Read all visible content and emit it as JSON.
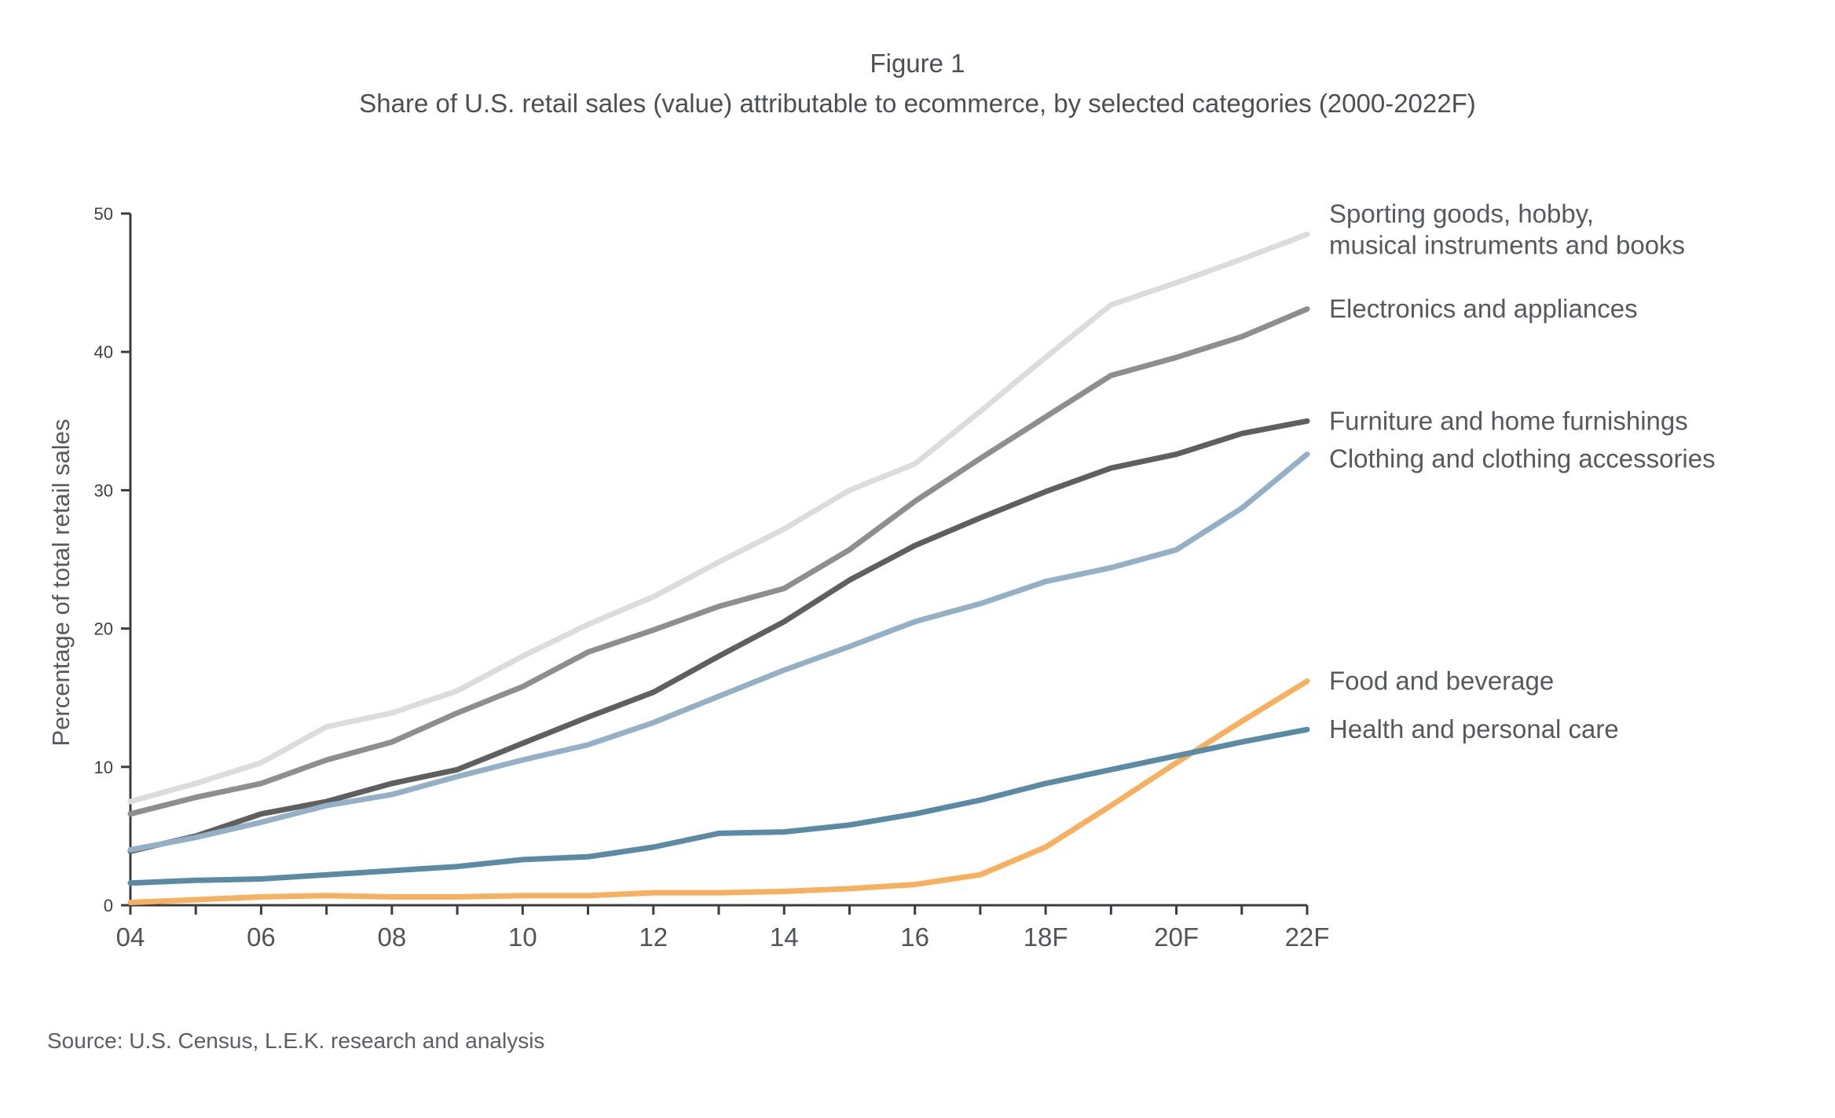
{
  "figure_label": "Figure 1",
  "source": "Source: U.S. Census, L.E.K. research and analysis",
  "chart_data": {
    "type": "line",
    "title": "Share of U.S. retail sales (value) attributable to ecommerce, by selected categories (2000-2022F)",
    "xlabel": "",
    "ylabel": "Percentage of total retail sales",
    "ylim": [
      0,
      50
    ],
    "yticks": [
      0,
      10,
      20,
      30,
      40,
      50
    ],
    "x": [
      "04",
      "05",
      "06",
      "07",
      "08",
      "09",
      "10",
      "11",
      "12",
      "13",
      "14",
      "15",
      "16",
      "17",
      "18F",
      "19",
      "20F",
      "21",
      "22F"
    ],
    "xtick_labels": [
      "04",
      "06",
      "08",
      "10",
      "12",
      "14",
      "16",
      "18F",
      "20F",
      "22F"
    ],
    "grid": false,
    "legend": "right, direct labels at line ends",
    "series": [
      {
        "name": "Sporting goods, hobby, musical instruments and books",
        "label_lines": [
          "Sporting goods, hobby,",
          "musical instruments and books"
        ],
        "color": "#dcdcdc",
        "values": [
          7.5,
          8.8,
          10.3,
          12.9,
          13.9,
          15.5,
          18.0,
          20.3,
          22.3,
          24.8,
          27.2,
          30.0,
          31.9,
          35.7,
          39.6,
          43.4,
          45.0,
          46.7,
          48.5
        ]
      },
      {
        "name": "Electronics and appliances",
        "label_lines": [
          "Electronics and appliances"
        ],
        "color": "#8e8e8e",
        "values": [
          6.6,
          7.8,
          8.8,
          10.5,
          11.8,
          13.9,
          15.8,
          18.3,
          19.9,
          21.6,
          22.9,
          25.7,
          29.2,
          32.3,
          35.3,
          38.3,
          39.6,
          41.1,
          43.1
        ]
      },
      {
        "name": "Furniture and home furnishings",
        "label_lines": [
          "Furniture and home furnishings"
        ],
        "color": "#5f5f5f",
        "values": [
          3.9,
          5.0,
          6.6,
          7.5,
          8.8,
          9.8,
          11.7,
          13.6,
          15.4,
          18.0,
          20.5,
          23.5,
          26.0,
          28.0,
          29.9,
          31.6,
          32.6,
          34.1,
          35.0
        ]
      },
      {
        "name": "Clothing and clothing accessories",
        "label_lines": [
          "Clothing and clothing accessories"
        ],
        "color": "#94b0c4",
        "values": [
          4.0,
          4.9,
          6.0,
          7.2,
          8.0,
          9.3,
          10.5,
          11.6,
          13.2,
          15.1,
          17.0,
          18.7,
          20.5,
          21.8,
          23.4,
          24.4,
          25.7,
          28.7,
          32.6
        ]
      },
      {
        "name": "Food and beverage",
        "label_lines": [
          "Food and beverage"
        ],
        "color": "#f6b05f",
        "values": [
          0.2,
          0.4,
          0.6,
          0.7,
          0.6,
          0.6,
          0.7,
          0.7,
          0.9,
          0.9,
          1.0,
          1.2,
          1.5,
          2.2,
          4.2,
          7.2,
          10.3,
          13.3,
          16.2
        ]
      },
      {
        "name": "Health and personal care",
        "label_lines": [
          "Health and personal care"
        ],
        "color": "#5a8aa4",
        "values": [
          1.6,
          1.8,
          1.9,
          2.2,
          2.5,
          2.8,
          3.3,
          3.5,
          4.2,
          5.2,
          5.3,
          5.8,
          6.6,
          7.6,
          8.8,
          9.8,
          10.8,
          11.8,
          12.7
        ]
      }
    ]
  }
}
